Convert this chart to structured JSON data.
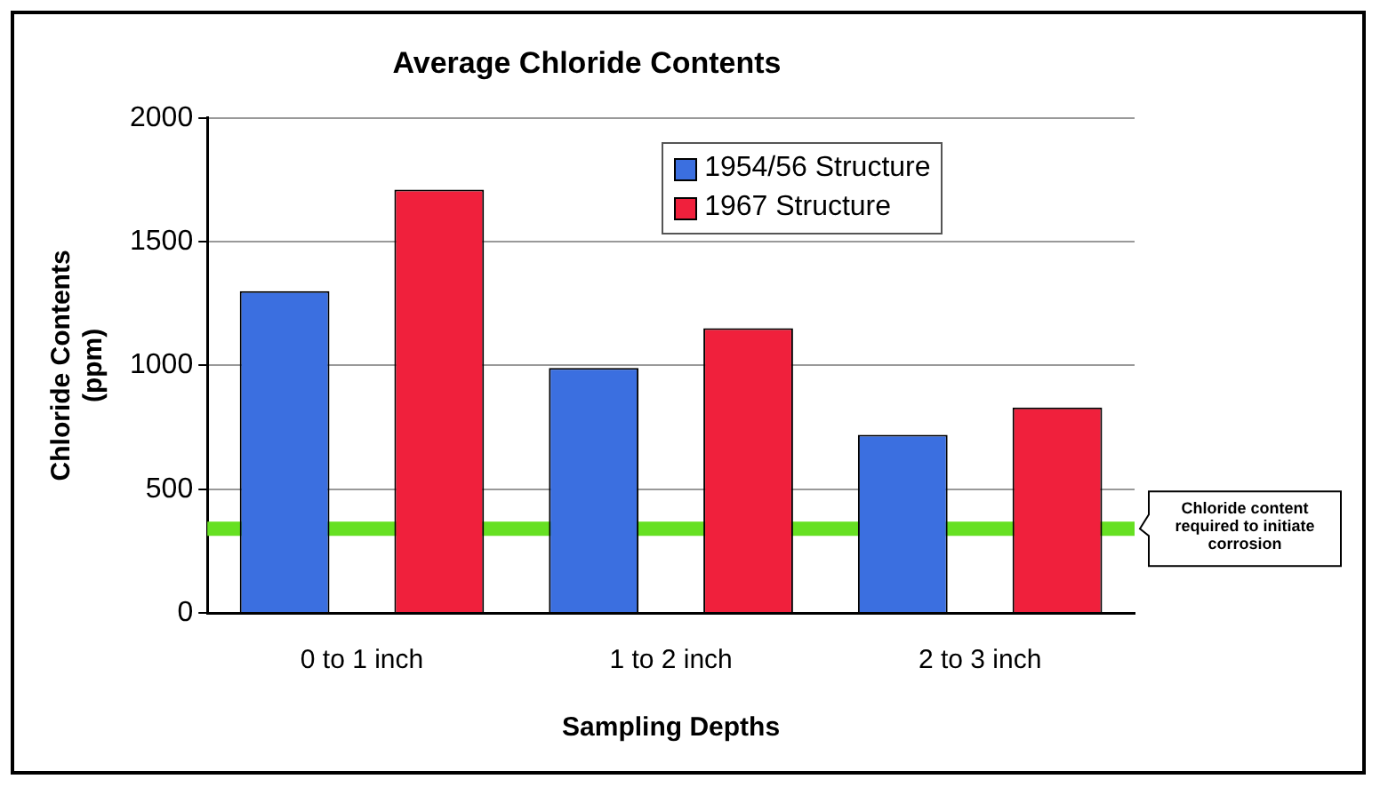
{
  "chart_data": {
    "type": "bar",
    "title": "Average Chloride Contents",
    "xlabel": "Sampling Depths",
    "ylabel": "Chloride Contents (ppm)",
    "categories": [
      "0 to 1 inch",
      "1 to 2 inch",
      "2 to 3 inch"
    ],
    "series": [
      {
        "name": "1954/56 Structure",
        "color": "#3b6fe0",
        "values": [
          1300,
          990,
          720
        ]
      },
      {
        "name": "1967 Structure",
        "color": "#f0203c",
        "values": [
          1710,
          1150,
          830
        ]
      }
    ],
    "ylim": [
      0,
      2000
    ],
    "yticks": [
      0,
      500,
      1000,
      1500,
      2000
    ],
    "grid": "y",
    "legend": "top right",
    "ref_lines": [
      {
        "axis": "y",
        "value": 340,
        "label": "Chloride content required to initiate corrosion",
        "color": "#66e022"
      }
    ]
  }
}
